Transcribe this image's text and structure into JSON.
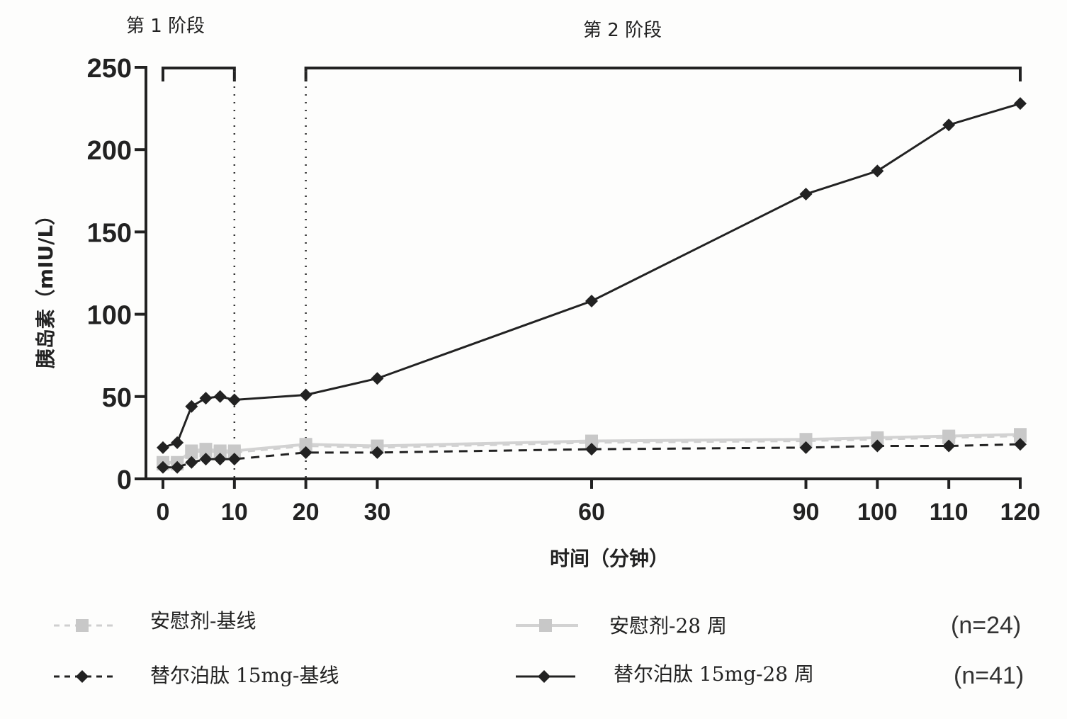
{
  "phases": {
    "phase1": "第 1 阶段",
    "phase2": "第 2 阶段"
  },
  "axes": {
    "ylabel": "胰岛素（mIU/L）",
    "xlabel": "时间（分钟）"
  },
  "legend": {
    "placebo_baseline": "安慰剂-基线",
    "placebo_28wk": "安慰剂-28 周",
    "tirz_baseline": "替尔泊肽  15mg-基线",
    "tirz_28wk": "替尔泊肽  15mg-28 周",
    "n_placebo": "(n=24)",
    "n_tirz": "(n=41)"
  },
  "colors": {
    "tirzepatide": "#222222",
    "placebo": "#c8c8c8"
  },
  "chart_data": {
    "type": "line",
    "title": "",
    "xlabel": "时间（分钟）",
    "ylabel": "胰岛素（mIU/L）",
    "xlim": [
      0,
      120
    ],
    "ylim": [
      0,
      250
    ],
    "xticks": [
      0,
      10,
      20,
      30,
      60,
      90,
      100,
      110,
      120
    ],
    "yticks": [
      0,
      50,
      100,
      150,
      200,
      250
    ],
    "grid": false,
    "legend_position": "bottom",
    "annotations": [
      {
        "text": "第 1 阶段",
        "range": [
          0,
          10
        ]
      },
      {
        "text": "第 2 阶段",
        "range": [
          20,
          120
        ]
      }
    ],
    "x": [
      0,
      2,
      4,
      6,
      8,
      10,
      20,
      30,
      60,
      90,
      100,
      110,
      120
    ],
    "series": [
      {
        "name": "安慰剂-基线",
        "style": "dashed-light-gray-square",
        "n": 24,
        "values": [
          9,
          9,
          16,
          17,
          16,
          16,
          20,
          19,
          22,
          23,
          24,
          25,
          26
        ]
      },
      {
        "name": "安慰剂-28 周",
        "style": "solid-light-gray-square",
        "n": 24,
        "values": [
          10,
          10,
          17,
          18,
          17,
          17,
          21,
          20,
          23,
          24,
          25,
          26,
          27
        ]
      },
      {
        "name": "替尔泊肽 15mg-基线",
        "style": "dashed-black-diamond",
        "n": 41,
        "values": [
          7,
          7,
          10,
          12,
          12,
          12,
          16,
          16,
          18,
          19,
          20,
          20,
          21
        ]
      },
      {
        "name": "替尔泊肽 15mg-28 周",
        "style": "solid-black-diamond",
        "n": 41,
        "values": [
          19,
          22,
          44,
          49,
          50,
          48,
          51,
          61,
          108,
          173,
          187,
          215,
          228
        ]
      }
    ]
  }
}
